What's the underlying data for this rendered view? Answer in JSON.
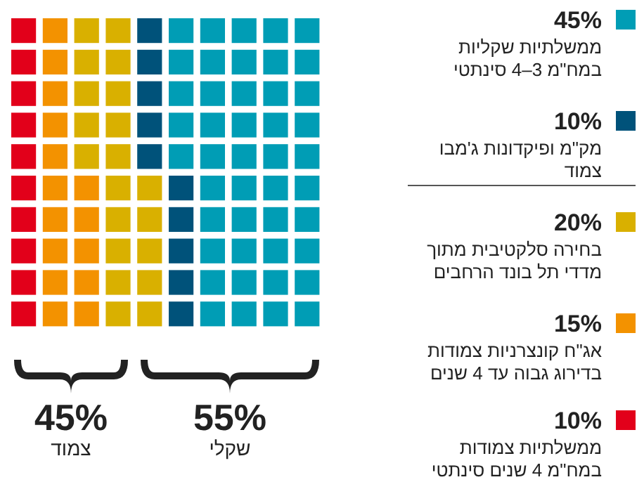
{
  "chart_data": {
    "type": "other",
    "categories": [
      "ממשלתיות שקליות\nבמח\"מ 3–4 סינתטי",
      "מק\"מ ופיקדונות ג'מבו\nצמוד",
      "בחירה סלקטיבית מתוך\nמדדי תל בונד הרחבים",
      "אג\"ח קונצרניות צמודות\nבדירוג גבוה עד 4 שנים",
      "ממשלתיות צמודות\nבמח\"מ 4 שנים סינתטי"
    ],
    "values": [
      45,
      10,
      20,
      15,
      10
    ],
    "value_labels": [
      "45%",
      "10%",
      "20%",
      "15%",
      "10%"
    ],
    "colors": [
      "#009db5",
      "#00527a",
      "#d9b000",
      "#f39200",
      "#e2001a"
    ],
    "annotations": [
      "45%",
      "צמוד",
      "55%",
      "שקלי"
    ]
  }
}
